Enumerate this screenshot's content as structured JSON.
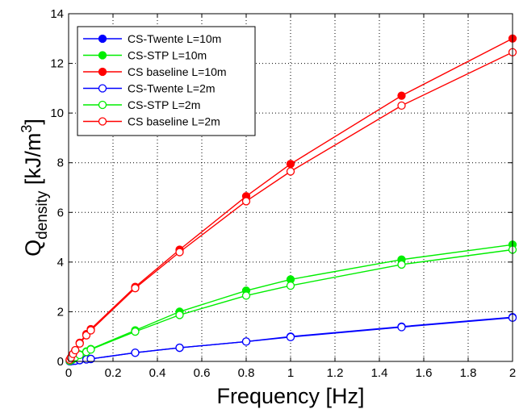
{
  "chart_data": {
    "type": "line",
    "xlabel": "Frequency [Hz]",
    "ylabel": {
      "main": "Q",
      "subscript": "density",
      "unit_prefix": " [kJ/m",
      "unit_superscript": "3",
      "unit_suffix": "]"
    },
    "xlim": [
      0,
      2
    ],
    "ylim": [
      0,
      14
    ],
    "xticks": [
      "0",
      "0.2",
      "0.4",
      "0.6",
      "0.8",
      "1",
      "1.2",
      "1.4",
      "1.6",
      "1.8",
      "2"
    ],
    "yticks": [
      "0",
      "2",
      "4",
      "6",
      "8",
      "10",
      "12",
      "14"
    ],
    "grid": true,
    "legend_position": "top-left",
    "x": [
      0.005,
      0.01,
      0.02,
      0.03,
      0.05,
      0.08,
      0.1,
      0.3,
      0.5,
      0.8,
      1.0,
      1.5,
      2.0
    ],
    "series": [
      {
        "name": "CS-Twente L=10m",
        "color": "#0000ff",
        "filled": true,
        "values": [
          0.005,
          0.01,
          0.02,
          0.03,
          0.05,
          0.08,
          0.1,
          0.35,
          0.55,
          0.8,
          1.0,
          1.4,
          1.78
        ]
      },
      {
        "name": "CS-STP L=10m",
        "color": "#00ee00",
        "filled": true,
        "values": [
          0.02,
          0.05,
          0.1,
          0.18,
          0.28,
          0.4,
          0.5,
          1.25,
          2.0,
          2.85,
          3.3,
          4.1,
          4.7
        ]
      },
      {
        "name": "CS baseline L=10m",
        "color": "#ff0000",
        "filled": true,
        "values": [
          0.07,
          0.15,
          0.3,
          0.45,
          0.75,
          1.1,
          1.3,
          3.0,
          4.5,
          6.65,
          7.95,
          10.7,
          13.0
        ]
      },
      {
        "name": "CS-Twente L=2m",
        "color": "#0000ff",
        "filled": false,
        "values": [
          0.005,
          0.01,
          0.02,
          0.03,
          0.05,
          0.08,
          0.1,
          0.35,
          0.55,
          0.8,
          0.98,
          1.38,
          1.76
        ]
      },
      {
        "name": "CS-STP L=2m",
        "color": "#00ee00",
        "filled": false,
        "values": [
          0.02,
          0.05,
          0.1,
          0.17,
          0.26,
          0.38,
          0.48,
          1.2,
          1.87,
          2.65,
          3.05,
          3.9,
          4.5
        ]
      },
      {
        "name": "CS baseline L=2m",
        "color": "#ff0000",
        "filled": false,
        "values": [
          0.07,
          0.15,
          0.3,
          0.45,
          0.72,
          1.05,
          1.25,
          2.95,
          4.4,
          6.45,
          7.65,
          10.3,
          12.45
        ]
      }
    ]
  }
}
